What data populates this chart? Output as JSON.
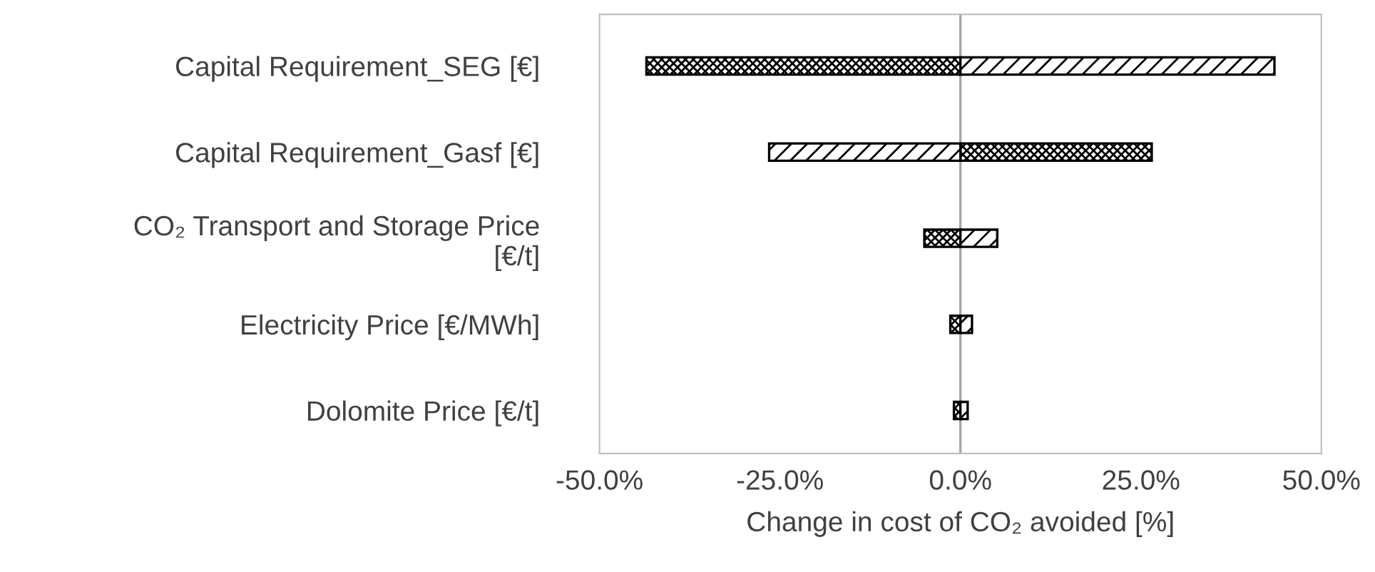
{
  "chart_data": {
    "type": "bar",
    "orientation": "horizontal",
    "xlabel": "Change in cost of CO₂ avoided [%]",
    "categories": [
      "Capital Requirement_SEG [€]",
      "Capital Requirement_Gasf [€]",
      "CO₂ Transport and Storage Price [€/t]",
      "Electricity Price [€/MWh]",
      "Dolomite Price [€/t]"
    ],
    "series": [
      {
        "color": "#000000",
        "values": [
          -43.5,
          26.5,
          -5.0,
          -1.4,
          -0.9
        ]
      },
      {
        "color": "#000000",
        "values": [
          43.5,
          -26.5,
          5.1,
          1.6,
          1.0
        ]
      }
    ],
    "xlim": [
      -50,
      50
    ],
    "xticks": [
      {
        "value": -50,
        "label": "-50.0%"
      },
      {
        "value": -25,
        "label": "-25.0%"
      },
      {
        "value": 0,
        "label": "0.0%"
      },
      {
        "value": 25,
        "label": "25.0%"
      },
      {
        "value": 50,
        "label": "50.0%"
      }
    ],
    "stacked": true,
    "ref_lines": [
      {
        "axis": "x",
        "value": 0,
        "color": "#a6a6a6"
      }
    ],
    "grid": false,
    "legend": false
  }
}
